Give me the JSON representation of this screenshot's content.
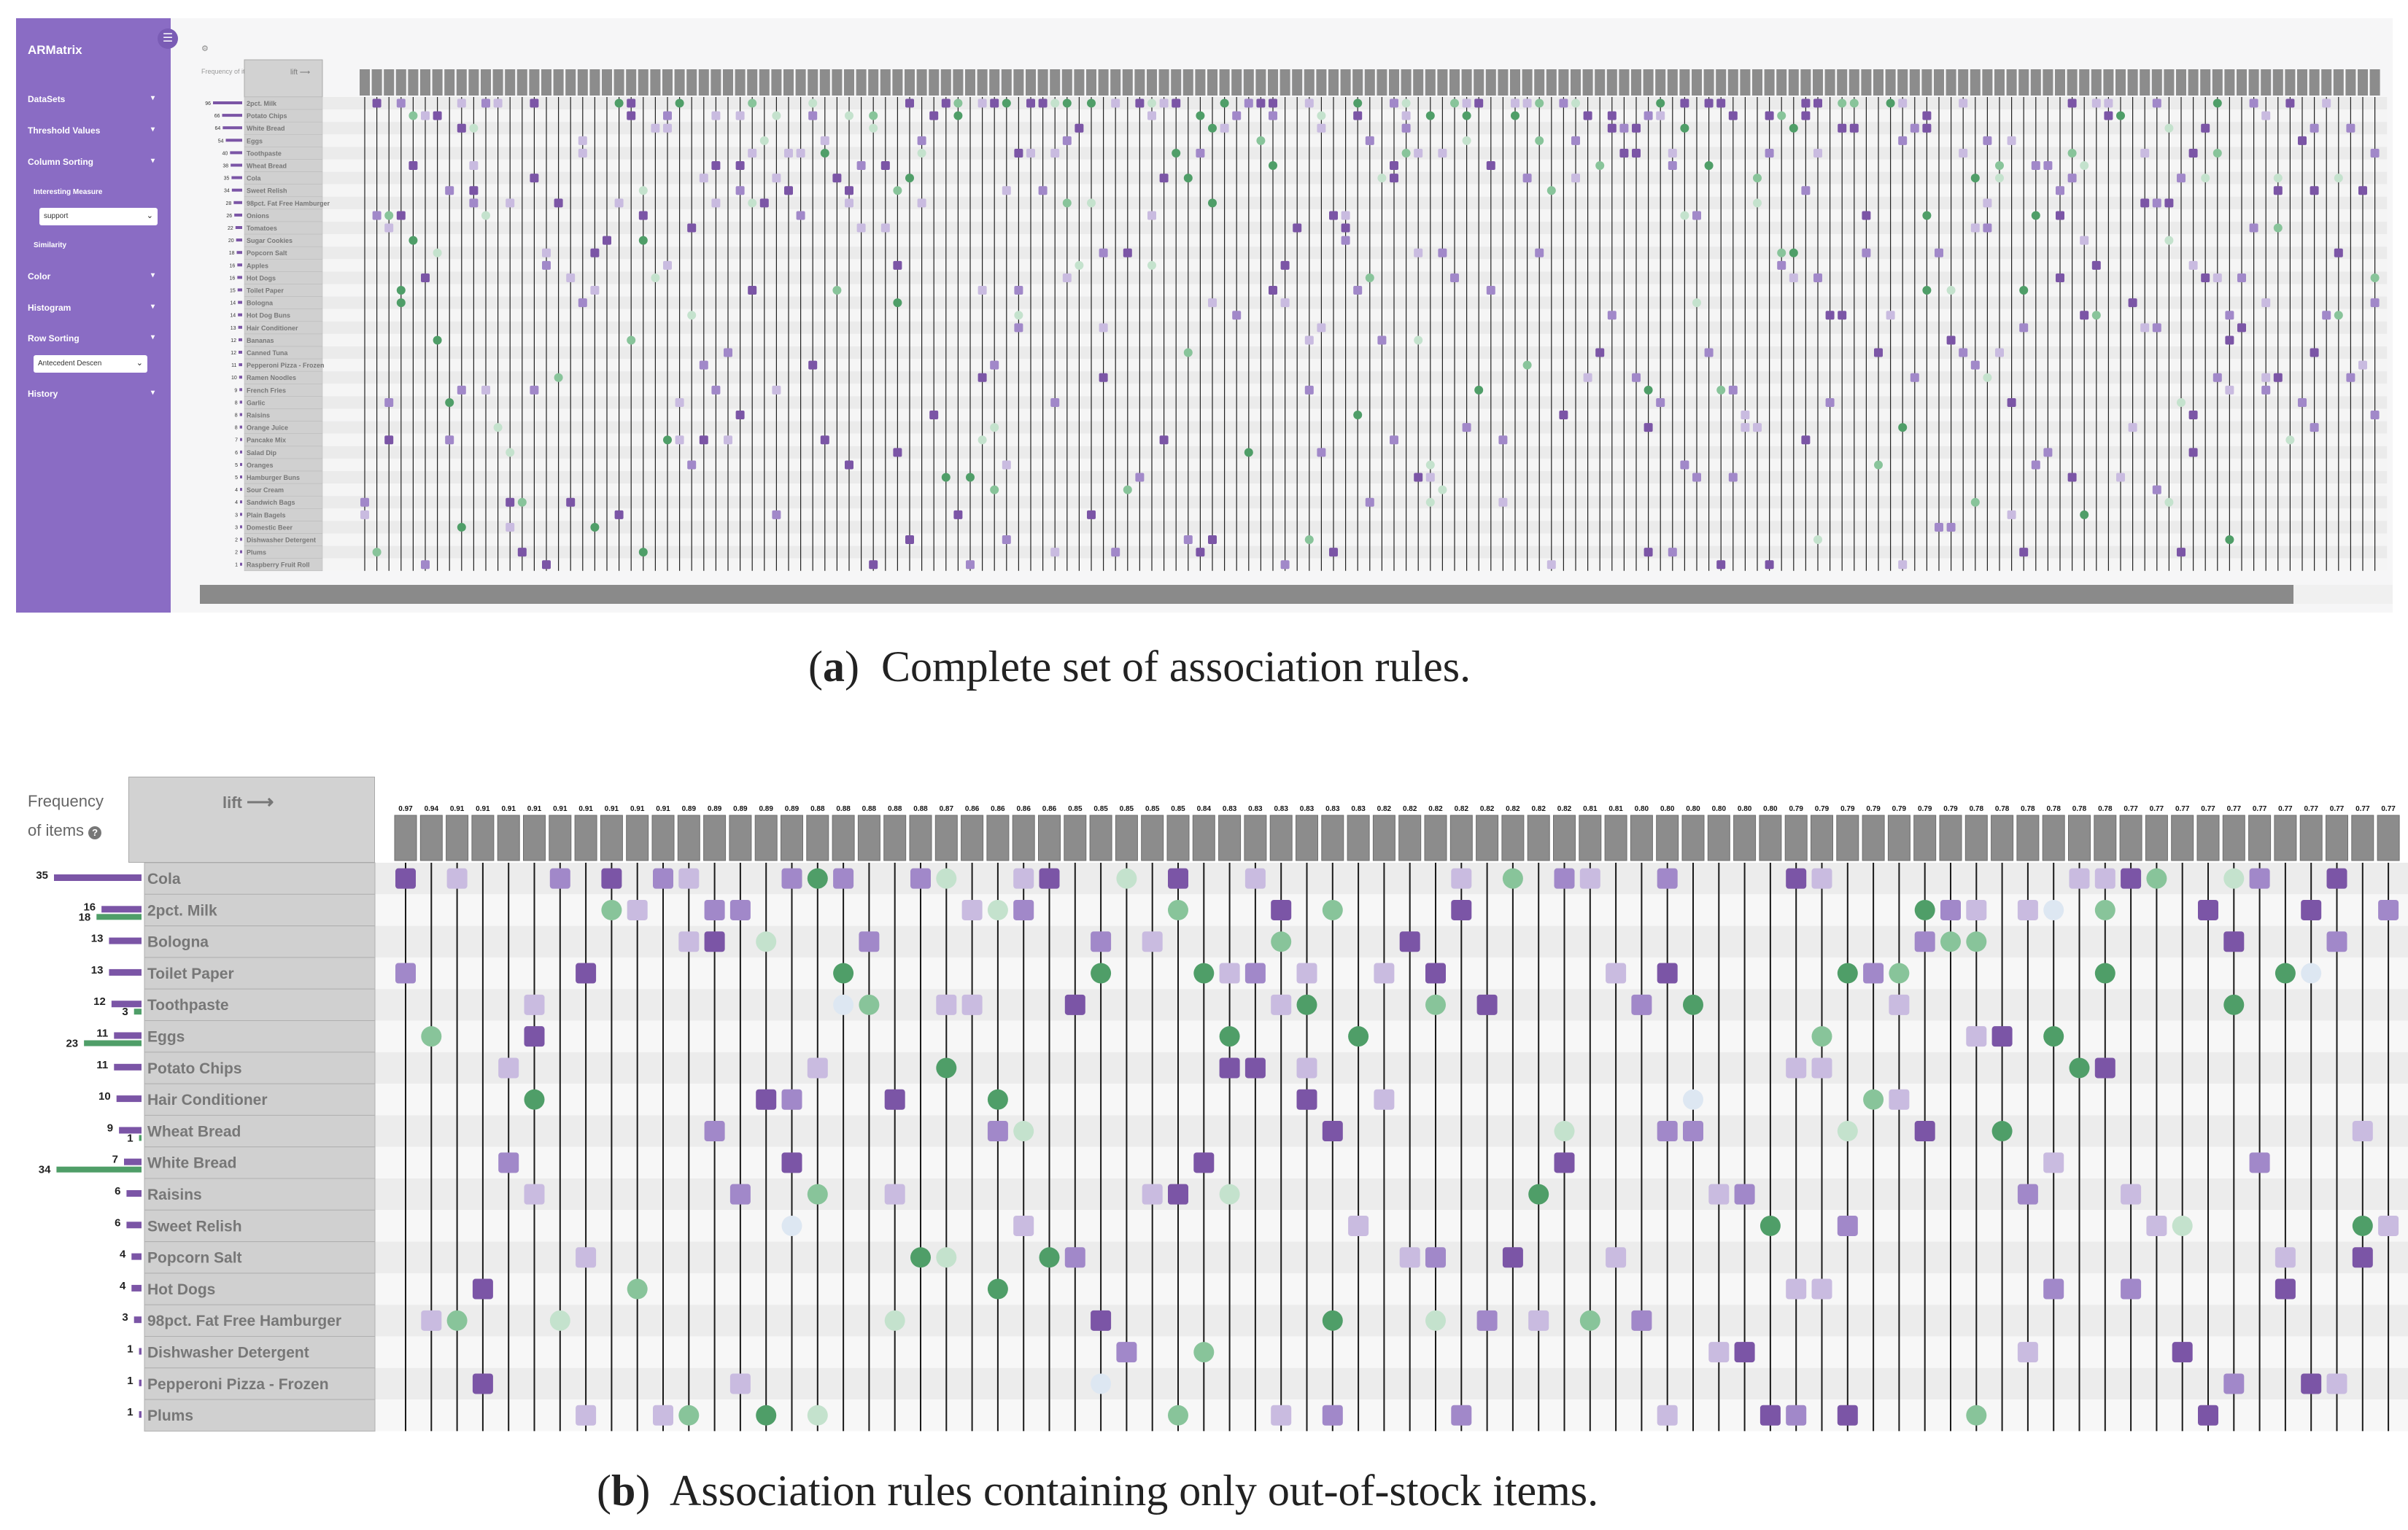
{
  "app": {
    "title": "ARMatrix"
  },
  "sidebar": {
    "items": [
      {
        "label": "DataSets"
      },
      {
        "label": "Threshold Values"
      },
      {
        "label": "Column Sorting"
      },
      {
        "label": "Color"
      },
      {
        "label": "Histogram"
      },
      {
        "label": "Row Sorting"
      },
      {
        "label": "History"
      }
    ],
    "interesting_measure_label": "Interesting Measure",
    "interesting_measure_value": "support",
    "similarity_label": "Similarity",
    "row_sorting_value": "Antecedent Descen"
  },
  "panel_a": {
    "freq_label": "Frequency of items",
    "sort_label": "lift",
    "items": [
      "2pct. Milk",
      "Potato Chips",
      "White Bread",
      "Eggs",
      "Toothpaste",
      "Wheat Bread",
      "Cola",
      "Sweet Relish",
      "98pct. Fat Free Hamburger",
      "Onions",
      "Tomatoes",
      "Sugar Cookies",
      "Popcorn Salt",
      "Apples",
      "Hot Dogs",
      "Toilet Paper",
      "Bologna",
      "Hot Dog Buns",
      "Hair Conditioner",
      "Bananas",
      "Canned Tuna",
      "Pepperoni Pizza - Frozen",
      "Ramen Noodles",
      "French Fries",
      "Garlic",
      "Raisins",
      "Orange Juice",
      "Pancake Mix",
      "Salad Dip",
      "Oranges",
      "Hamburger Buns",
      "Sour Cream",
      "Sandwich Bags",
      "Plain Bagels",
      "Domestic Beer",
      "Dishwasher Detergent",
      "Plums",
      "Raspberry Fruit Roll"
    ],
    "freqs": [
      96,
      66,
      64,
      54,
      40,
      38,
      35,
      34,
      28,
      26,
      22,
      20,
      18,
      16,
      16,
      15,
      14,
      14,
      13,
      12,
      12,
      11,
      10,
      9,
      8,
      8,
      8,
      7,
      6,
      5,
      5,
      4,
      4,
      3,
      3,
      2,
      2,
      1
    ]
  },
  "caption_a": {
    "tag": "a",
    "text": "Complete set of association rules."
  },
  "panel_b": {
    "freq_label_line1": "Frequency",
    "freq_label_line2": "of items",
    "info_icon": "info-icon",
    "sort_label": "lift",
    "arrow_icon": "arrow-right-icon",
    "items": [
      "Cola",
      "2pct. Milk",
      "Bologna",
      "Toilet Paper",
      "Toothpaste",
      "Eggs",
      "Potato Chips",
      "Hair Conditioner",
      "Wheat Bread",
      "White Bread",
      "Raisins",
      "Sweet Relish",
      "Popcorn Salt",
      "Hot Dogs",
      "98pct. Fat Free Hamburger",
      "Dishwasher Detergent",
      "Pepperoni Pizza - Frozen",
      "Plums"
    ],
    "freqs": [
      35,
      16,
      13,
      13,
      12,
      11,
      11,
      10,
      9,
      7,
      6,
      6,
      4,
      4,
      3,
      1,
      1,
      1
    ],
    "second_counts": {
      "1": "18",
      "4": "3",
      "5": "23",
      "8": "1",
      "9": "34"
    },
    "lift_values": [
      "0.97",
      "0.94",
      "0.91",
      "0.91",
      "0.91",
      "0.91",
      "0.91",
      "0.91",
      "0.91",
      "0.91",
      "0.91",
      "0.89",
      "0.89",
      "0.89",
      "0.89",
      "0.89",
      "0.88",
      "0.88",
      "0.88",
      "0.88",
      "0.88",
      "0.87",
      "0.86",
      "0.86",
      "0.86",
      "0.86",
      "0.85",
      "0.85",
      "0.85",
      "0.85",
      "0.85",
      "0.84",
      "0.83",
      "0.83",
      "0.83",
      "0.83",
      "0.83",
      "0.83",
      "0.82",
      "0.82",
      "0.82",
      "0.82",
      "0.82",
      "0.82",
      "0.82",
      "0.82",
      "0.81",
      "0.81",
      "0.80",
      "0.80",
      "0.80",
      "0.80",
      "0.80",
      "0.80",
      "0.79",
      "0.79",
      "0.79",
      "0.79",
      "0.79",
      "0.79",
      "0.79",
      "0.78",
      "0.78",
      "0.78",
      "0.78",
      "0.78",
      "0.78",
      "0.77",
      "0.77",
      "0.77",
      "0.77",
      "0.77",
      "0.77",
      "0.77",
      "0.77",
      "0.77",
      "0.77",
      "0.77"
    ]
  },
  "caption_b": {
    "tag": "b",
    "text": "Association rules containing only out-of-stock items."
  },
  "colors": {
    "sidebar": "#8a6cc4",
    "purple_dark": "#7b55a6",
    "purple_mid": "#a188c9",
    "purple_light": "#c9bbe0",
    "green": "#4f9e68",
    "green_mid": "#88c49a",
    "green_light": "#c4e2cd",
    "ice": "#dde7f2",
    "header_gray": "#8c8c8c"
  }
}
